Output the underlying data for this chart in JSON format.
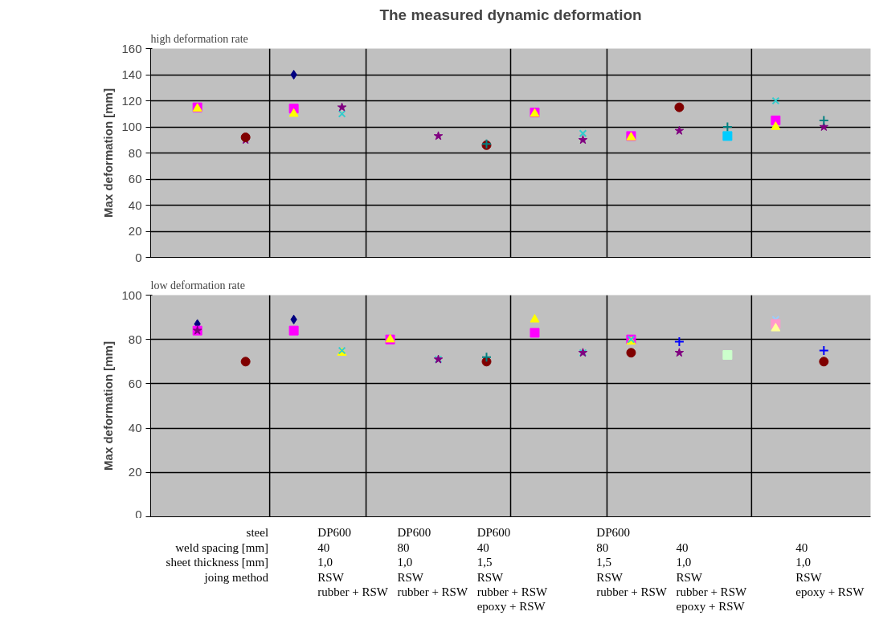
{
  "chart_data": [
    {
      "type": "scatter",
      "title": "The measured dynamic deformation",
      "subtitle": "high deformation rate",
      "ylabel": "Max deformation [mm]",
      "categories": [
        null,
        null,
        null,
        null,
        null,
        null,
        null,
        null,
        null,
        null,
        null,
        null,
        null,
        null
      ],
      "ylim": [
        0,
        160
      ],
      "yticks": [
        0,
        20,
        40,
        60,
        80,
        100,
        120,
        140,
        160
      ],
      "grid": "y",
      "tick_labels": "y",
      "series": [
        {
          "color": "#000080",
          "marker": "diamond",
          "values": [
            null,
            null,
            140,
            null,
            null,
            null,
            null,
            null,
            null,
            null,
            null,
            null,
            null,
            null
          ]
        },
        {
          "color": "#ff00ff",
          "marker": "square",
          "values": [
            115,
            null,
            114,
            null,
            null,
            null,
            null,
            111,
            null,
            93,
            null,
            null,
            105,
            null
          ]
        },
        {
          "color": "#ffff00",
          "marker": "triangle",
          "values": [
            114,
            null,
            110,
            null,
            null,
            null,
            null,
            110,
            null,
            92,
            null,
            null,
            100,
            null
          ]
        },
        {
          "color": "#33cccc",
          "marker": "x",
          "values": [
            null,
            null,
            null,
            110,
            null,
            null,
            null,
            null,
            95,
            null,
            null,
            null,
            120,
            null
          ]
        },
        {
          "color": "#800080",
          "marker": "star",
          "values": [
            null,
            90,
            null,
            115,
            null,
            93,
            null,
            null,
            90,
            null,
            97,
            null,
            null,
            100
          ]
        },
        {
          "color": "#800000",
          "marker": "circle",
          "values": [
            null,
            92,
            null,
            null,
            null,
            null,
            86,
            null,
            null,
            null,
            115,
            null,
            null,
            null
          ]
        },
        {
          "color": "#008080",
          "marker": "cross",
          "values": [
            null,
            null,
            null,
            null,
            null,
            null,
            87,
            null,
            null,
            null,
            null,
            100,
            null,
            105
          ]
        },
        {
          "color": "#00ccff",
          "marker": "square",
          "values": [
            null,
            null,
            null,
            null,
            null,
            null,
            null,
            null,
            null,
            null,
            null,
            93,
            null,
            null
          ]
        }
      ]
    },
    {
      "type": "scatter",
      "subtitle": "low deformation rate",
      "ylabel": "Max deformation [mm]",
      "categories": [
        null,
        null,
        null,
        null,
        null,
        null,
        null,
        null,
        null,
        null,
        null,
        null,
        null,
        null
      ],
      "ylim": [
        0,
        100
      ],
      "yticks": [
        0,
        20,
        40,
        60,
        80,
        100
      ],
      "grid": "y",
      "tick_labels": "y",
      "annotations": [
        "steel\nweld spacing [mm]\nsheet thickness [mm]\njoing method",
        "DP600\n40\n1,0\nRSW\nrubber + RSW",
        "DP600\n80\n1,0\nRSW\nrubber + RSW",
        "DP600\n40\n1,5\nRSW\nrubber + RSW\nepoxy + RSW",
        "DP600\n80\n1,5\nRSW\nrubber + RSW",
        "\n40\n1,0\nRSW\nrubber + RSW\nepoxy + RSW",
        "\n40\n1,0\nRSW\nepoxy + RSW"
      ],
      "series": [
        {
          "color": "#000080",
          "marker": "diamond",
          "values": [
            87,
            null,
            89,
            null,
            null,
            null,
            null,
            null,
            null,
            null,
            null,
            null,
            null,
            null
          ]
        },
        {
          "color": "#ff00ff",
          "marker": "square",
          "values": [
            84,
            null,
            84,
            null,
            80,
            null,
            null,
            83,
            null,
            80,
            null,
            null,
            null,
            null
          ]
        },
        {
          "color": "#ffff00",
          "marker": "triangle",
          "values": [
            null,
            null,
            null,
            74,
            80,
            null,
            null,
            89,
            null,
            79,
            null,
            null,
            null,
            null
          ]
        },
        {
          "color": "#33cccc",
          "marker": "x",
          "values": [
            null,
            null,
            null,
            75,
            null,
            71,
            null,
            null,
            74,
            80,
            null,
            null,
            null,
            null
          ]
        },
        {
          "color": "#800080",
          "marker": "star",
          "values": [
            84,
            null,
            null,
            null,
            null,
            71,
            null,
            null,
            74,
            null,
            74,
            null,
            null,
            null
          ]
        },
        {
          "color": "#800000",
          "marker": "circle",
          "values": [
            null,
            70,
            null,
            null,
            null,
            null,
            70,
            null,
            null,
            74,
            null,
            null,
            null,
            70
          ]
        },
        {
          "color": "#008080",
          "marker": "cross",
          "values": [
            null,
            null,
            null,
            null,
            null,
            null,
            72,
            null,
            null,
            null,
            null,
            null,
            null,
            null
          ]
        },
        {
          "color": "#0000ff",
          "marker": "cross",
          "values": [
            null,
            null,
            null,
            null,
            null,
            null,
            null,
            null,
            null,
            null,
            79,
            null,
            null,
            75
          ]
        },
        {
          "color": "#ccffcc",
          "marker": "square",
          "values": [
            null,
            null,
            null,
            null,
            null,
            null,
            null,
            null,
            null,
            null,
            null,
            73,
            null,
            null
          ]
        },
        {
          "color": "#99ccff",
          "marker": "x",
          "values": [
            null,
            null,
            null,
            null,
            null,
            null,
            null,
            null,
            null,
            null,
            null,
            null,
            89,
            null
          ]
        },
        {
          "color": "#ff99cc",
          "marker": "square",
          "values": [
            null,
            null,
            null,
            null,
            null,
            null,
            null,
            null,
            null,
            null,
            null,
            null,
            87,
            null
          ]
        },
        {
          "color": "#ffff99",
          "marker": "triangle",
          "values": [
            null,
            null,
            null,
            null,
            null,
            null,
            null,
            null,
            null,
            null,
            null,
            null,
            85,
            null
          ]
        }
      ]
    }
  ]
}
